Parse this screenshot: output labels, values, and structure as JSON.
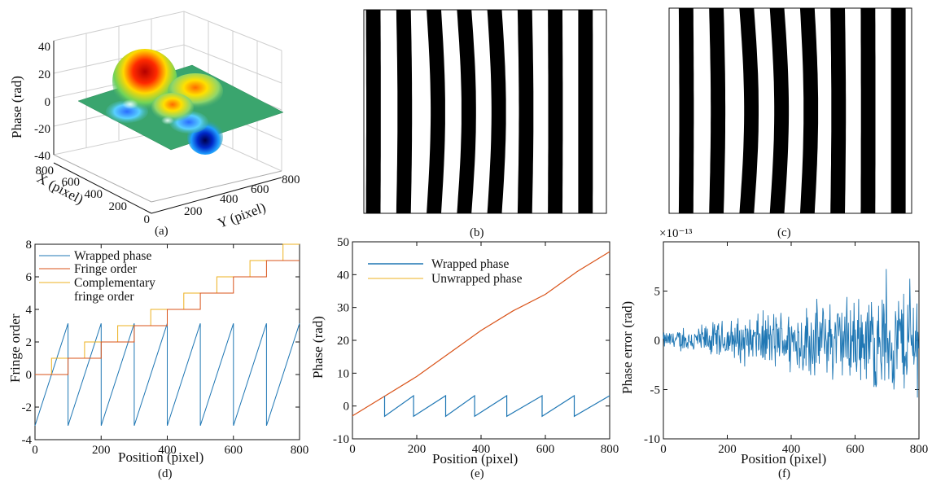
{
  "colors": {
    "blue": "#1f77b4",
    "red": "#d95319",
    "yellow": "#edb120",
    "surface_flat": "#3aa56e"
  },
  "panels": {
    "a": {
      "label": "(a)"
    },
    "b": {
      "label": "(b)"
    },
    "c": {
      "label": "(c)"
    },
    "d": {
      "label": "(d)"
    },
    "e": {
      "label": "(e)"
    },
    "f": {
      "label": "(f)",
      "exponent": "×10⁻¹³"
    }
  },
  "chart_data": [
    {
      "panel": "a",
      "type": "surface3d",
      "zlabel": "Phase (rad)",
      "xlabel": "X (pixel)",
      "ylabel": "Y (pixel)",
      "zticks": [
        "40",
        "20",
        "0",
        "-20",
        "-40"
      ],
      "xticks": [
        "800",
        "600",
        "400",
        "200",
        "0"
      ],
      "yticks": [
        "200",
        "400",
        "600",
        "800"
      ],
      "zlim": [
        -40,
        40
      ],
      "xlim": [
        0,
        800
      ],
      "ylim": [
        0,
        800
      ],
      "peaks": [
        {
          "x": 250,
          "y": 300,
          "z": 36
        },
        {
          "x": 420,
          "y": 430,
          "z": 17
        },
        {
          "x": 470,
          "y": 260,
          "z": 20
        },
        {
          "x": 500,
          "y": 500,
          "z": -38
        },
        {
          "x": 380,
          "y": 270,
          "z": -15
        }
      ]
    },
    {
      "panel": "b",
      "type": "fringe_pattern",
      "stripe_count": 8
    },
    {
      "panel": "c",
      "type": "fringe_pattern",
      "stripe_count": 8,
      "offset": "half period"
    },
    {
      "panel": "d",
      "type": "line",
      "xlabel": "Position (pixel)",
      "ylabel": "Fringe order",
      "xlim": [
        0,
        800
      ],
      "ylim": [
        -4,
        8
      ],
      "xticks": [
        0,
        200,
        400,
        600,
        800
      ],
      "yticks": [
        -4,
        -2,
        0,
        2,
        4,
        6,
        8
      ],
      "legend_location": "top-left",
      "series": [
        {
          "name": "Wrapped phase",
          "kind": "wrapped",
          "period": 100,
          "start": -3.14,
          "end": 3.14
        },
        {
          "name": "Fringe order",
          "kind": "staircase",
          "step_width": 100,
          "start_x": 0,
          "first_level": 0,
          "last_level": 7
        },
        {
          "name": "Complementary\nfringe order",
          "kind": "staircase",
          "step_width": 100,
          "start_x": 50,
          "first_level": 0,
          "last_level": 8
        }
      ]
    },
    {
      "panel": "e",
      "type": "line",
      "xlabel": "Position (pixel)",
      "ylabel": "Phase (rad)",
      "xlim": [
        0,
        800
      ],
      "ylim": [
        -10,
        50
      ],
      "xticks": [
        0,
        200,
        400,
        600,
        800
      ],
      "yticks": [
        -10,
        0,
        10,
        20,
        30,
        40,
        50
      ],
      "legend_location": "top-left",
      "series": [
        {
          "name": "Wrapped phase",
          "kind": "wrapped",
          "x_start": 100,
          "jumps": [
            100,
            190,
            290,
            380,
            480,
            590,
            690
          ],
          "start": -3.14,
          "end": 3.14
        },
        {
          "name": "Unwrapped phase",
          "kind": "line",
          "x": [
            0,
            100,
            200,
            300,
            400,
            500,
            600,
            700,
            800
          ],
          "y": [
            -3,
            3,
            9,
            16,
            23,
            29,
            34,
            41,
            47
          ]
        }
      ]
    },
    {
      "panel": "f",
      "type": "line",
      "xlabel": "Position (pixel)",
      "ylabel": "Phase error (rad)",
      "xlim": [
        0,
        800
      ],
      "ylim": [
        -10,
        10
      ],
      "y_scale_factor": "1e-13",
      "xticks": [
        0,
        200,
        400,
        600,
        800
      ],
      "yticks": [
        -10,
        -5,
        0,
        5
      ],
      "series": [
        {
          "name": "Phase error",
          "kind": "noise",
          "amplitude_at_start": 1,
          "amplitude_at_end": 7
        }
      ]
    }
  ]
}
